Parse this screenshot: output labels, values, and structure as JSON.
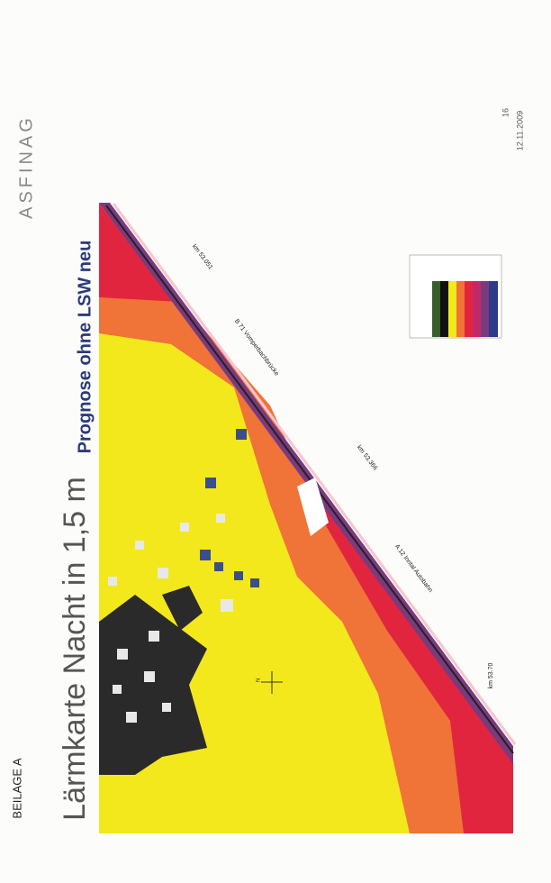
{
  "header": {
    "beilage": "BEILAGE A",
    "title": "Lärmkarte Nacht in 1,5 m",
    "subtitle": "Prognose ohne LSW neu"
  },
  "logo": {
    "brand": "ASFINAG"
  },
  "footer": {
    "page": "16",
    "date": "12.11.2009"
  },
  "map": {
    "labels": [
      "km 53.051",
      "B 71 Vomperbachbrücke",
      "km 53.366",
      "A 12 Inntal Autobahn",
      "km 53.70",
      "N"
    ]
  }
}
